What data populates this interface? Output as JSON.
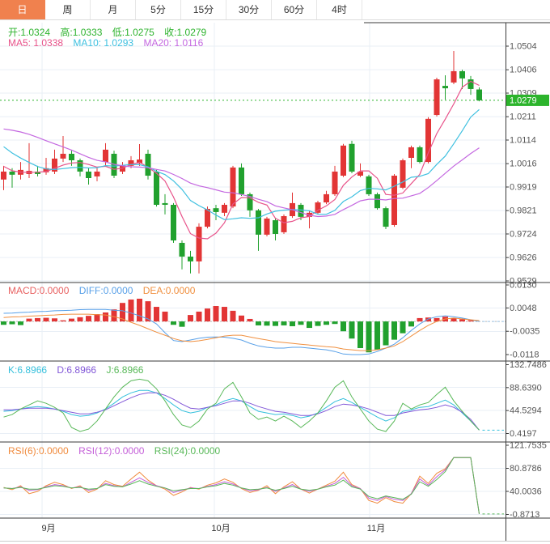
{
  "tabs": [
    "日",
    "周",
    "月",
    "5分",
    "15分",
    "30分",
    "60分",
    "4时"
  ],
  "active_tab": "日",
  "readouts": {
    "ohlc": {
      "open": "开:1.0324",
      "high": "高:1.0333",
      "low": "低:1.0275",
      "close": "收:1.0279"
    },
    "ma": {
      "ma5": "MA5: 1.0338",
      "ma10": "MA10: 1.0293",
      "ma20": "MA20: 1.0116"
    },
    "macd": {
      "macd": "MACD:0.0000",
      "diff": "DIFF:0.0000",
      "dea": "DEA:0.0000"
    },
    "kdj": {
      "k": "K:6.8966",
      "d": "D:6.8966",
      "j": "J:6.8966"
    },
    "rsi": {
      "rsi6": "RSI(6):0.0000",
      "rsi12": "RSI(12):0.0000",
      "rsi24": "RSI(24):0.0000"
    }
  },
  "colors": {
    "tab_active_bg": "#f0814e",
    "up": "#e23535",
    "down": "#21a12e",
    "price_line": "#2db32d",
    "price_badge_bg": "#2cb42c",
    "price_badge_text": "#ffffff",
    "ohlc_text": "#2db32d",
    "ma5": "#e8538a",
    "ma10": "#3fc0e0",
    "ma20": "#c468e0",
    "macd_label": "#e86060",
    "diff": "#58a0e8",
    "dea": "#f09040",
    "k": "#35c0dc",
    "d": "#8258d8",
    "j": "#58b858",
    "rsi6": "#f08a3c",
    "rsi12": "#c45fd8",
    "rsi24": "#58b858",
    "grid": "#e9eff6",
    "border": "#3a3a3a",
    "axis_text": "#555555",
    "month_text": "#333333",
    "macd_zero_line": "#bbbbbb",
    "macd_extension": "#9fc9ee"
  },
  "chart_data": [
    {
      "type": "candlestick",
      "panel": "main",
      "y_tick_labels": [
        "1.0504",
        "1.0406",
        "1.0309",
        "1.0211",
        "1.0114",
        "1.0016",
        "0.9919",
        "0.9821",
        "0.9724",
        "0.9626",
        "0.9529"
      ],
      "ylim": [
        0.9529,
        1.0504
      ],
      "current_price": 1.0279,
      "current_price_label": "1.0279",
      "x_axis_labels": [
        "9月",
        "10月",
        "11月"
      ],
      "grid": true,
      "legend_position": "top-left",
      "ohlc": [
        [
          0.995,
          1.0007,
          0.9906,
          0.9983
        ],
        [
          0.9983,
          0.9997,
          0.9916,
          0.997
        ],
        [
          0.997,
          1.0023,
          0.995,
          0.999
        ],
        [
          0.9973,
          1.0101,
          0.9956,
          0.9986
        ],
        [
          0.9983,
          1.0007,
          0.9963,
          0.9973
        ],
        [
          0.998,
          1.004,
          0.997,
          0.9997
        ],
        [
          0.9983,
          1.0074,
          0.9973,
          1.0037
        ],
        [
          1.0037,
          1.0131,
          1.0023,
          1.0057
        ],
        [
          1.0057,
          1.007,
          1.0007,
          1.003
        ],
        [
          1.003,
          1.0037,
          0.9963,
          0.9983
        ],
        [
          0.9983,
          0.9997,
          0.9929,
          0.9956
        ],
        [
          0.9963,
          1.0,
          0.9943,
          0.9983
        ],
        [
          1.0023,
          1.0101,
          1.0007,
          1.0074
        ],
        [
          1.0057,
          1.007,
          0.9956,
          0.9966
        ],
        [
          0.9983,
          1.0023,
          0.9973,
          1.0007
        ],
        [
          1.0007,
          1.0047,
          0.9997,
          1.003
        ],
        [
          1.0017,
          1.0097,
          1.0007,
          1.0033
        ],
        [
          1.0057,
          1.0074,
          0.995,
          0.9966
        ],
        [
          0.9983,
          0.999,
          0.9838,
          0.9845
        ],
        [
          0.9852,
          0.9889,
          0.9805,
          0.9845
        ],
        [
          0.9845,
          0.9852,
          0.9687,
          0.9697
        ],
        [
          0.9687,
          0.9697,
          0.9577,
          0.963
        ],
        [
          0.963,
          0.9654,
          0.956,
          0.961
        ],
        [
          0.961,
          0.9768,
          0.956,
          0.9754
        ],
        [
          0.9754,
          0.9838,
          0.9747,
          0.9828
        ],
        [
          0.9831,
          0.9845,
          0.9781,
          0.9815
        ],
        [
          0.9812,
          0.9852,
          0.9798,
          0.9845
        ],
        [
          0.9838,
          1.0007,
          0.9831,
          1.0
        ],
        [
          1.0,
          1.0017,
          0.9882,
          0.9889
        ],
        [
          0.9889,
          0.9896,
          0.9795,
          0.9822
        ],
        [
          0.9822,
          0.9828,
          0.9654,
          0.9721
        ],
        [
          0.9721,
          0.9795,
          0.9714,
          0.9788
        ],
        [
          0.9781,
          0.9788,
          0.9697,
          0.9724
        ],
        [
          0.9731,
          0.9805,
          0.9724,
          0.9798
        ],
        [
          0.9798,
          0.9896,
          0.9791,
          0.9852
        ],
        [
          0.9845,
          0.9852,
          0.9781,
          0.9795
        ],
        [
          0.9795,
          0.9822,
          0.9747,
          0.9812
        ],
        [
          0.9812,
          0.9862,
          0.9805,
          0.9855
        ],
        [
          0.9855,
          0.9903,
          0.9848,
          0.9889
        ],
        [
          0.9889,
          1.0007,
          0.9882,
          0.9983
        ],
        [
          0.9966,
          1.0098,
          0.996,
          1.0091
        ],
        [
          1.0098,
          1.0111,
          0.9976,
          0.9983
        ],
        [
          0.9966,
          1.0017,
          0.996,
          0.9983
        ],
        [
          0.9963,
          0.997,
          0.9882,
          0.9889
        ],
        [
          0.9889,
          0.9896,
          0.9825,
          0.9831
        ],
        [
          0.9831,
          0.9838,
          0.9744,
          0.9754
        ],
        [
          0.9761,
          0.9973,
          0.9754,
          0.9966
        ],
        [
          0.9916,
          1.0037,
          0.991,
          1.003
        ],
        [
          1.004,
          1.0091,
          0.9997,
          1.0084
        ],
        [
          1.0084,
          1.0091,
          1.0017,
          1.0023
        ],
        [
          1.0023,
          1.0209,
          1.0017,
          1.0202
        ],
        [
          1.0218,
          1.0373,
          1.0212,
          1.0366
        ],
        [
          1.0339,
          1.0383,
          1.0282,
          1.0329
        ],
        [
          1.0353,
          1.0484,
          1.0346,
          1.04
        ],
        [
          1.04,
          1.0406,
          1.0326,
          1.037
        ],
        [
          1.0366,
          1.038,
          1.0302,
          1.0326
        ],
        [
          1.0324,
          1.0333,
          1.0275,
          1.0279
        ]
      ],
      "ma_periods": [
        5,
        10,
        20
      ],
      "ma_current": {
        "ma5": 1.0338,
        "ma10": 1.0293,
        "ma20": 1.0116
      },
      "ma_seed_closes": [
        1.008,
        1.013,
        1.018,
        1.023,
        1.027,
        1.03,
        1.031,
        1.03,
        1.028,
        1.026,
        1.023,
        1.02,
        1.017,
        1.014,
        1.01,
        1.006,
        1.002,
        0.999,
        0.997
      ]
    },
    {
      "type": "bar",
      "panel": "macd",
      "y_tick_labels": [
        "0.0130",
        "0.0048",
        "-0.0035",
        "-0.0118"
      ],
      "ylim": [
        -0.0118,
        0.013
      ],
      "histogram": [
        -0.0012,
        -0.001,
        -0.0013,
        0.001,
        0.0012,
        0.0013,
        0.0011,
        0.0004,
        0.001,
        0.0015,
        0.002,
        0.0026,
        0.0032,
        0.0043,
        0.0066,
        0.0078,
        0.0081,
        0.0072,
        0.0052,
        0.0035,
        -0.0012,
        -0.0019,
        0.0023,
        0.0035,
        0.0046,
        0.0055,
        0.0052,
        0.0038,
        0.0021,
        0.0009,
        -0.0014,
        -0.0015,
        -0.0016,
        -0.0014,
        -0.0017,
        -0.0012,
        -0.0023,
        -0.0016,
        -0.0012,
        -0.0009,
        -0.0035,
        -0.0061,
        -0.0095,
        -0.011,
        -0.01,
        -0.0085,
        -0.0065,
        -0.0042,
        -0.0018,
        0.0012,
        0.0014,
        0.0012,
        0.0017,
        0.0012,
        0.0008,
        0.0004,
        0.0
      ],
      "series": [
        {
          "name": "DIFF",
          "values": [
            0.0029,
            0.003,
            0.0032,
            0.0033,
            0.0035,
            0.0036,
            0.0038,
            0.0039,
            0.004,
            0.0042,
            0.0043,
            0.0043,
            0.0043,
            0.004,
            0.0038,
            0.003,
            0.002,
            0.0009,
            -0.0009,
            -0.004,
            -0.0068,
            -0.0072,
            -0.0066,
            -0.006,
            -0.0056,
            -0.0055,
            -0.0056,
            -0.006,
            -0.0066,
            -0.0078,
            -0.0087,
            -0.0092,
            -0.0095,
            -0.0095,
            -0.0092,
            -0.0092,
            -0.0095,
            -0.0098,
            -0.0101,
            -0.0107,
            -0.0116,
            -0.0118,
            -0.0118,
            -0.0116,
            -0.0107,
            -0.0095,
            -0.0081,
            -0.0058,
            -0.0032,
            -0.0009,
            0.0009,
            0.0017,
            0.002,
            0.0017,
            0.0012,
            0.0006,
            0.0
          ]
        },
        {
          "name": "DEA",
          "values": [
            0.0014,
            0.0016,
            0.0017,
            0.0019,
            0.002,
            0.0022,
            0.0023,
            0.0025,
            0.0026,
            0.0026,
            0.0026,
            0.0024,
            0.0023,
            0.0017,
            0.0009,
            -0.0003,
            -0.0014,
            -0.0026,
            -0.0038,
            -0.0049,
            -0.0061,
            -0.0069,
            -0.0072,
            -0.0069,
            -0.0064,
            -0.0058,
            -0.0052,
            -0.0049,
            -0.0049,
            -0.0055,
            -0.0061,
            -0.0066,
            -0.0072,
            -0.0075,
            -0.0078,
            -0.0081,
            -0.0084,
            -0.0087,
            -0.009,
            -0.0092,
            -0.0098,
            -0.0101,
            -0.0104,
            -0.0104,
            -0.0101,
            -0.0095,
            -0.0087,
            -0.0072,
            -0.0052,
            -0.0032,
            -0.0014,
            0.0,
            0.0009,
            0.0012,
            0.0009,
            0.0006,
            0.0003
          ]
        }
      ]
    },
    {
      "type": "line",
      "panel": "kdj",
      "y_tick_labels": [
        "132.7486",
        "88.6390",
        "44.5294",
        "0.4197"
      ],
      "ylim": [
        0.4197,
        132.7486
      ],
      "series": [
        {
          "name": "K",
          "values": [
            43.0,
            44.5,
            47.6,
            50.7,
            52.3,
            50.7,
            47.6,
            43.0,
            36.8,
            33.7,
            35.2,
            39.9,
            47.6,
            58.5,
            70.8,
            78.6,
            83.2,
            83.2,
            78.6,
            67.7,
            55.4,
            44.5,
            39.9,
            43.0,
            50.7,
            55.4,
            63.1,
            67.7,
            63.1,
            52.3,
            43.0,
            39.9,
            36.8,
            38.3,
            35.2,
            30.6,
            33.7,
            39.9,
            50.7,
            61.6,
            67.7,
            60.0,
            50.7,
            41.4,
            32.1,
            24.4,
            30.6,
            43.0,
            46.1,
            50.7,
            52.3,
            58.5,
            64.7,
            55.4,
            39.9,
            24.4,
            6.8966
          ]
        },
        {
          "name": "D",
          "values": [
            46.1,
            46.1,
            47.6,
            49.2,
            49.2,
            49.2,
            47.6,
            44.5,
            41.4,
            38.3,
            38.3,
            41.4,
            46.1,
            53.8,
            61.6,
            69.3,
            75.5,
            78.6,
            78.6,
            73.9,
            66.2,
            56.9,
            49.2,
            47.6,
            50.7,
            53.8,
            58.5,
            63.1,
            63.1,
            58.5,
            52.3,
            47.6,
            43.0,
            41.4,
            38.3,
            35.2,
            35.2,
            38.3,
            44.5,
            52.3,
            56.9,
            55.4,
            52.3,
            47.6,
            41.4,
            35.2,
            35.2,
            39.9,
            43.0,
            46.1,
            47.6,
            50.7,
            55.4,
            50.7,
            41.4,
            27.5,
            6.8966
          ]
        },
        {
          "name": "J",
          "values": [
            32.1,
            36.8,
            47.6,
            55.4,
            63.1,
            58.5,
            50.7,
            39.9,
            12.0,
            4.3,
            8.9,
            24.4,
            47.6,
            70.8,
            89.4,
            101.8,
            104.9,
            101.8,
            86.3,
            63.1,
            36.8,
            16.7,
            12.0,
            24.4,
            47.6,
            58.5,
            86.3,
            98.7,
            70.8,
            39.9,
            27.5,
            32.1,
            24.4,
            33.7,
            24.4,
            12.0,
            24.4,
            39.9,
            63.1,
            89.4,
            101.8,
            70.8,
            47.6,
            24.4,
            8.9,
            4.3,
            24.4,
            58.5,
            47.6,
            55.4,
            60.0,
            75.5,
            89.4,
            63.1,
            43.0,
            24.4,
            6.8966
          ]
        }
      ]
    },
    {
      "type": "line",
      "panel": "rsi",
      "y_tick_labels": [
        "121.7535",
        "80.8786",
        "40.0036",
        "-0.8713"
      ],
      "ylim": [
        -0.8713,
        121.7535
      ],
      "series": [
        {
          "name": "RSI6",
          "values": [
            47,
            43,
            50,
            36,
            40,
            50,
            56,
            52,
            45,
            50,
            38,
            44,
            59,
            52,
            49,
            62,
            74,
            60,
            50,
            44,
            33,
            39,
            47,
            44,
            51,
            55,
            62,
            56,
            45,
            38,
            42,
            50,
            36,
            48,
            57,
            44,
            37,
            44,
            51,
            58,
            74,
            52,
            45,
            24,
            19,
            29,
            22,
            19,
            36,
            67,
            54,
            72,
            80,
            100,
            100,
            100,
            0
          ]
        },
        {
          "name": "RSI12",
          "values": [
            46,
            45,
            48,
            42,
            43,
            48,
            52,
            50,
            46,
            48,
            42,
            45,
            54,
            50,
            48,
            56,
            64,
            56,
            50,
            46,
            38,
            42,
            46,
            45,
            49,
            52,
            57,
            53,
            46,
            41,
            43,
            47,
            40,
            46,
            52,
            44,
            40,
            44,
            49,
            54,
            65,
            50,
            45,
            28,
            24,
            31,
            26,
            24,
            36,
            62,
            51,
            66,
            78,
            100,
            100,
            100,
            0
          ]
        },
        {
          "name": "RSI24",
          "values": [
            46,
            45,
            47,
            44,
            44,
            47,
            50,
            49,
            46,
            47,
            44,
            45,
            52,
            49,
            48,
            53,
            59,
            53,
            49,
            46,
            41,
            43,
            45,
            45,
            48,
            50,
            54,
            51,
            46,
            43,
            44,
            46,
            42,
            45,
            49,
            44,
            42,
            44,
            48,
            51,
            60,
            48,
            44,
            31,
            27,
            32,
            29,
            26,
            35,
            57,
            49,
            61,
            75,
            100,
            100,
            100,
            0
          ]
        }
      ]
    }
  ]
}
